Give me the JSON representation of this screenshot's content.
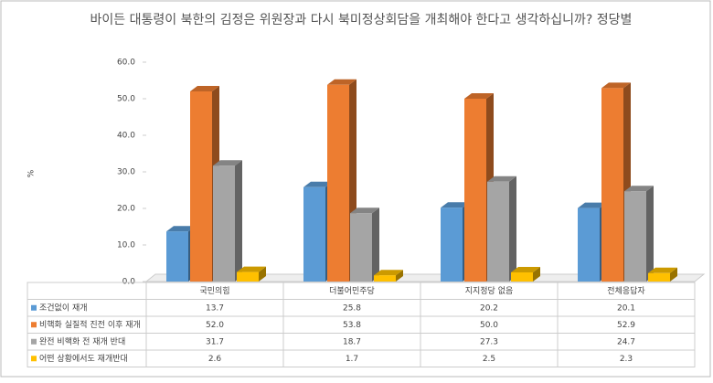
{
  "chart_data": {
    "type": "bar3d",
    "title": "바이든 대통령이 북한의 김정은 위원장과 다시 북미정상회담을 개최해야 한다고 생각하십니까? 정당별",
    "y_label": "%",
    "categories": [
      "국민의힘",
      "더불어민주당",
      "지지정당 없음",
      "전체응답자"
    ],
    "series": [
      {
        "name": "조건없이 재개",
        "color": "#5b9bd5",
        "values": [
          13.7,
          25.8,
          20.2,
          20.1
        ],
        "value_labels": [
          "13.7",
          "25.8",
          "20.2",
          "20.1"
        ]
      },
      {
        "name": "비핵화 실질적 진전 이후 재개",
        "color": "#ed7d31",
        "values": [
          52.0,
          53.8,
          50.0,
          52.9
        ],
        "value_labels": [
          "52.0",
          "53.8",
          "50.0",
          "52.9"
        ]
      },
      {
        "name": "완전 비핵화 전 재개 반대",
        "color": "#a5a5a5",
        "values": [
          31.7,
          18.7,
          27.3,
          24.7
        ],
        "value_labels": [
          "31.7",
          "18.7",
          "27.3",
          "24.7"
        ]
      },
      {
        "name": "어떤 상황에서도 재개반대",
        "color": "#ffc000",
        "values": [
          2.6,
          1.7,
          2.5,
          2.3
        ],
        "value_labels": [
          "2.6",
          "1.7",
          "2.5",
          "2.3"
        ]
      }
    ],
    "ylim": [
      0,
      60
    ],
    "yticks": [
      {
        "value": 0,
        "label": "0.0"
      },
      {
        "value": 10,
        "label": "10.0"
      },
      {
        "value": 20,
        "label": "20.0"
      },
      {
        "value": 30,
        "label": "30.0"
      },
      {
        "value": 40,
        "label": "40.0"
      },
      {
        "value": 50,
        "label": "50.0"
      },
      {
        "value": 60,
        "label": "60.0"
      }
    ],
    "grid": false
  }
}
